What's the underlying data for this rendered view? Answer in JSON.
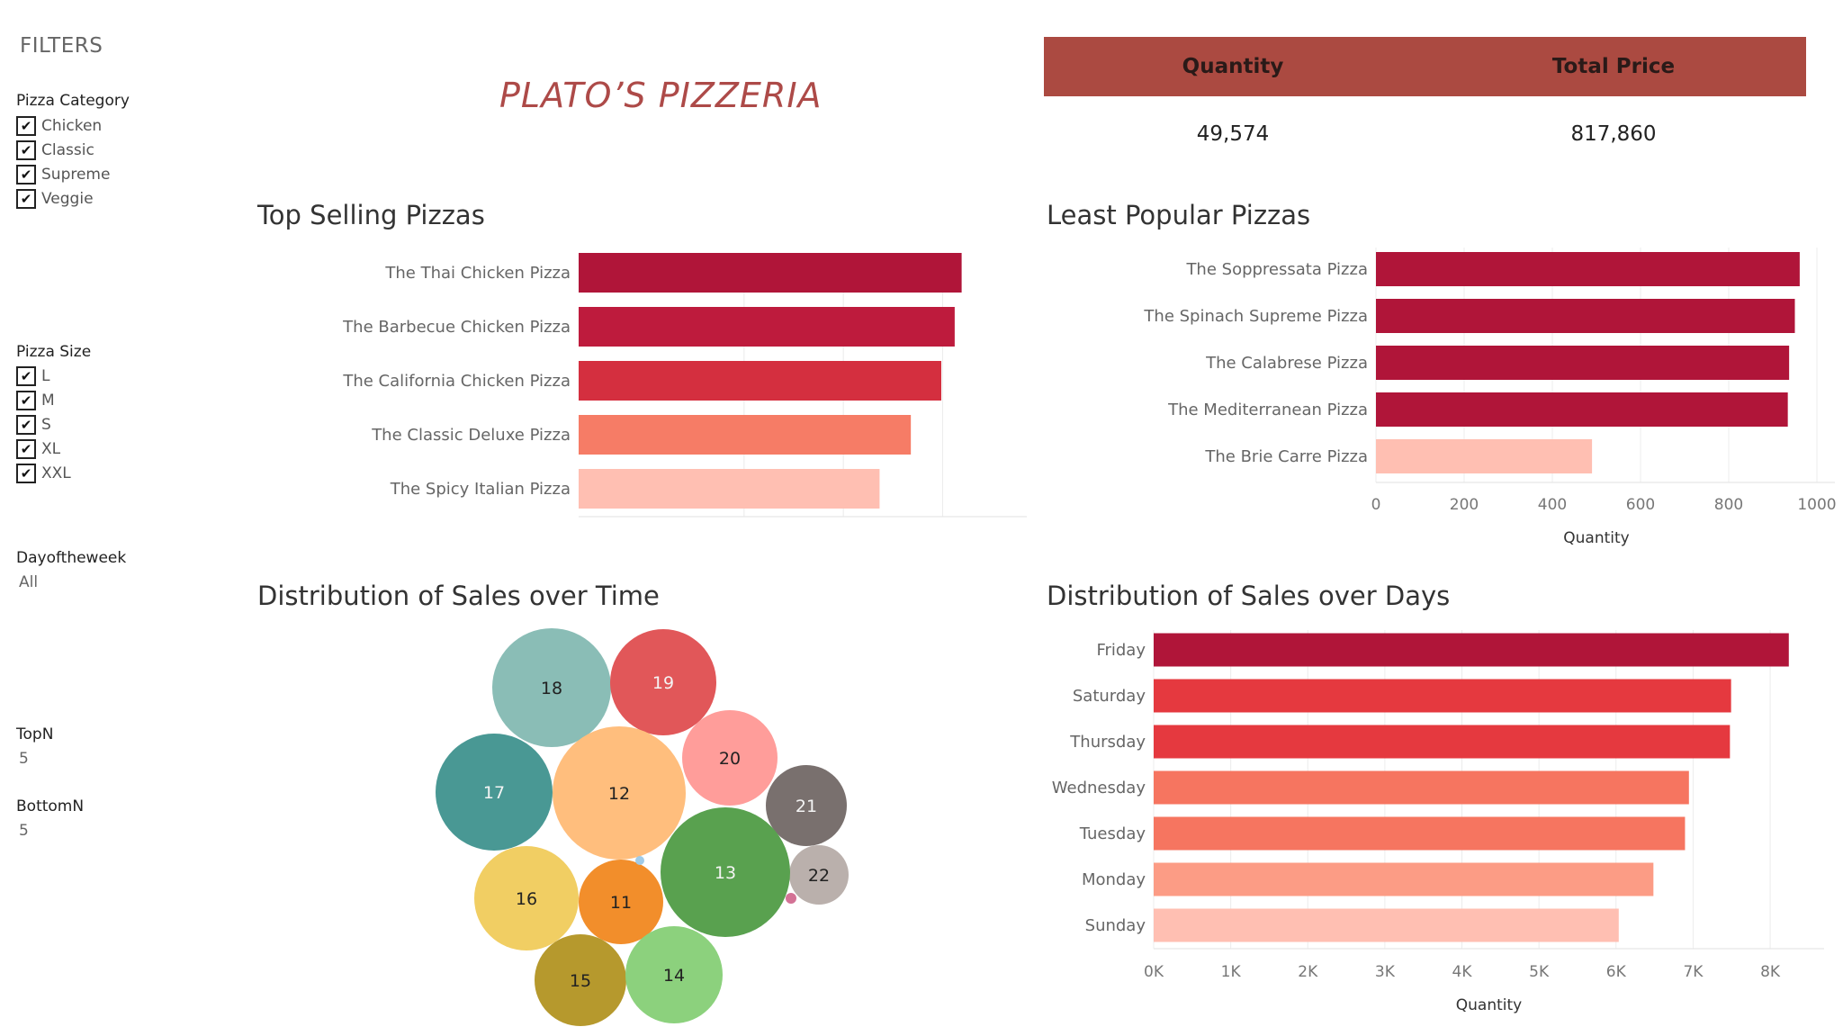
{
  "filters": {
    "title": "FILTERS",
    "category": {
      "label": "Pizza Category",
      "options": [
        "Chicken",
        "Classic",
        "Supreme",
        "Veggie"
      ]
    },
    "size": {
      "label": "Pizza Size",
      "options": [
        "L",
        "M",
        "S",
        "XL",
        "XXL"
      ]
    },
    "dayofweek": {
      "label": "Dayoftheweek",
      "value": "All"
    },
    "topn": {
      "label": "TopN",
      "value": "5"
    },
    "bottomn": {
      "label": "BottomN",
      "value": "5"
    },
    "check_glyph": "✔"
  },
  "brand": {
    "title": "PLATO’S PIZZERIA"
  },
  "kpis": {
    "quantity_label": "Quantity",
    "quantity_value": "49,574",
    "price_label": "Total Price",
    "price_value": "817,860"
  },
  "chart_data": [
    {
      "type": "bar",
      "orientation": "horizontal",
      "title": "Top Selling Pizzas",
      "categories": [
        "The Thai Chicken Pizza",
        "The Barbecue Chicken Pizza",
        "The California Chicken Pizza",
        "The Classic Deluxe Pizza",
        "The Spicy Italian Pizza"
      ],
      "values": [
        2315,
        2273,
        2192,
        2008,
        1819
      ],
      "colors": [
        "#b01539",
        "#be1b3d",
        "#d42f3f",
        "#f67c66",
        "#ffbfb2"
      ],
      "xlim": [
        0,
        2600
      ],
      "grid_ticks": [
        1000,
        1600,
        2200
      ],
      "show_axis": false
    },
    {
      "type": "bar",
      "orientation": "horizontal",
      "title": "Least Popular Pizzas",
      "categories": [
        "The Soppressata Pizza",
        "The Spinach Supreme Pizza",
        "The Calabrese Pizza",
        "The Mediterranean Pizza",
        "The Brie Carre Pizza"
      ],
      "values": [
        961,
        950,
        937,
        934,
        490
      ],
      "colors": [
        "#b01539",
        "#b01539",
        "#b01539",
        "#b01539",
        "#ffbfb2"
      ],
      "xlim": [
        0,
        1000
      ],
      "xticks": [
        0,
        200,
        400,
        600,
        800,
        1000
      ],
      "xlabel": "Quantity"
    },
    {
      "type": "bubble",
      "title": "Distribution of Sales over Time",
      "bubbles": [
        {
          "label": "18",
          "color": "#8abdb6",
          "dark_text": true
        },
        {
          "label": "19",
          "color": "#e15759",
          "dark_text": false
        },
        {
          "label": "20",
          "color": "#ff9d9a",
          "dark_text": true
        },
        {
          "label": "17",
          "color": "#499894",
          "dark_text": false
        },
        {
          "label": "12",
          "color": "#ffbe7d",
          "dark_text": true
        },
        {
          "label": "21",
          "color": "#79706e",
          "dark_text": false
        },
        {
          "label": "22",
          "color": "#bab0ac",
          "dark_text": true
        },
        {
          "label": "13",
          "color": "#59a14f",
          "dark_text": false
        },
        {
          "label": "16",
          "color": "#f1ce63",
          "dark_text": true
        },
        {
          "label": "11",
          "color": "#f28e2b",
          "dark_text": true
        },
        {
          "label": "15",
          "color": "#b6992d",
          "dark_text": true
        },
        {
          "label": "14",
          "color": "#8cd17d",
          "dark_text": true
        },
        {
          "label": "",
          "color": "#d37295",
          "dark_text": true
        },
        {
          "label": "",
          "color": "#a0cbe8",
          "dark_text": true
        }
      ]
    },
    {
      "type": "bar",
      "orientation": "horizontal",
      "title": "Distribution of Sales over Days",
      "categories": [
        "Friday",
        "Saturday",
        "Thursday",
        "Wednesday",
        "Tuesday",
        "Monday",
        "Sunday"
      ],
      "values": [
        8242,
        7493,
        7478,
        6946,
        6895,
        6485,
        6035
      ],
      "colors": [
        "#b01539",
        "#e5393f",
        "#e5393f",
        "#f67560",
        "#f67560",
        "#fc9c85",
        "#ffbfb2"
      ],
      "xlim": [
        0,
        8700
      ],
      "xticks": [
        0,
        1000,
        2000,
        3000,
        4000,
        5000,
        6000,
        7000,
        8000
      ],
      "xtick_labels": [
        "0K",
        "1K",
        "2K",
        "3K",
        "4K",
        "5K",
        "6K",
        "7K",
        "8K"
      ],
      "xlabel": "Quantity"
    }
  ]
}
